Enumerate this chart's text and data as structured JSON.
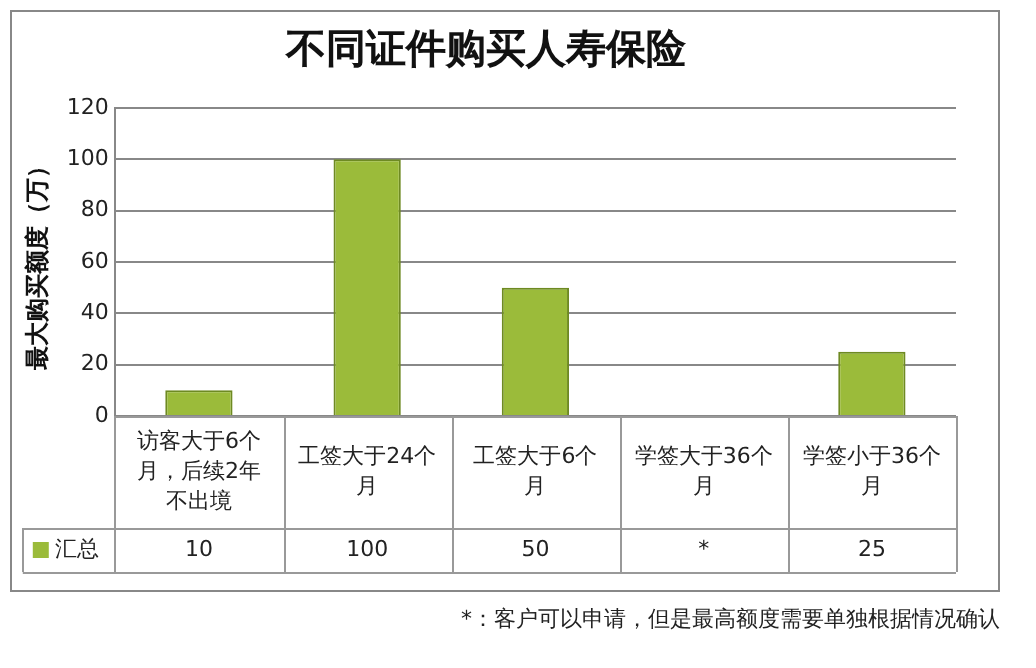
{
  "chart_data": {
    "type": "bar",
    "title": "不同证件购买人寿保险",
    "ylabel": "最大购买额度（万）",
    "categories": [
      "访客大于6个月，后续2年不出境",
      "工签大于24个月",
      "工签大于6个月",
      "学签大于36个月",
      "学签小于36个月"
    ],
    "series": [
      {
        "name": "汇总",
        "color": "#9bbb3a",
        "values": [
          10,
          100,
          50,
          null,
          25
        ],
        "value_labels": [
          "10",
          "100",
          "50",
          "*",
          "25"
        ]
      }
    ],
    "ylim": [
      0,
      120
    ],
    "yticks": [
      0,
      20,
      40,
      60,
      80,
      100,
      120
    ],
    "grid": "y",
    "legend": "bottom left",
    "annotations": [
      "*：客户可以申请，但是最高额度需要单独根据情况确认"
    ]
  }
}
